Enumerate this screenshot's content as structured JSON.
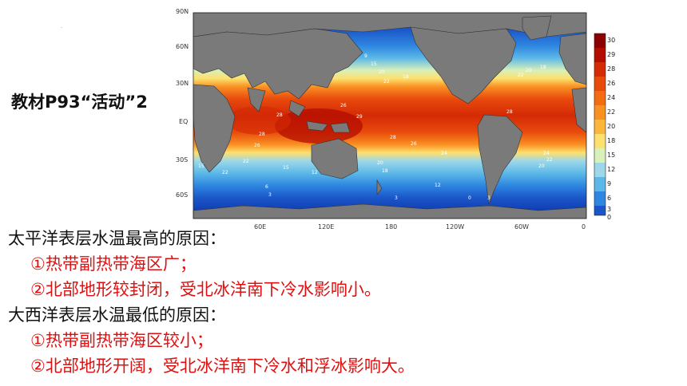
{
  "slide": {
    "label": "教材P93“活动”2"
  },
  "map": {
    "lat_labels": [
      "90N",
      "60N",
      "30N",
      "EQ",
      "30S",
      "60S"
    ],
    "lon_labels": [
      "60E",
      "120E",
      "180",
      "120W",
      "60W",
      "0"
    ],
    "colorbar_labels": [
      "30",
      "29",
      "28",
      "26",
      "24",
      "22",
      "20",
      "18",
      "15",
      "12",
      "9",
      "6",
      "3",
      "0"
    ],
    "colorbar_colors": [
      "#8b0000",
      "#b30c00",
      "#d42a06",
      "#e84a0c",
      "#f36b12",
      "#f99022",
      "#fdb63c",
      "#fde06e",
      "#d9f0b8",
      "#9ed8e8",
      "#5cb8e8",
      "#2e86e0",
      "#1a56c8",
      "#0a2ea8"
    ],
    "temperature_labels": [
      "6",
      "9",
      "12",
      "15",
      "18",
      "20",
      "22",
      "24",
      "26",
      "28",
      "29",
      "30",
      "3",
      "0"
    ]
  },
  "text": {
    "pacific_heading": "太平洋表层水温最高的原因：",
    "pacific_reason_1": "①热带副热带海区广；",
    "pacific_reason_2": "②北部地形较封闭，受北冰洋南下冷水影响小。",
    "atlantic_heading": "大西洋表层水温最低的原因：",
    "atlantic_reason_1": "①热带副热带海区较小；",
    "atlantic_reason_2": "②北部地形开阔，受北冰洋南下冷水和浮冰影响大。"
  },
  "colors": {
    "heading_text": "#111111",
    "reason_text": "#e01010",
    "land": "#7a7a7a",
    "cold_ocean": "#1a3cc0"
  }
}
